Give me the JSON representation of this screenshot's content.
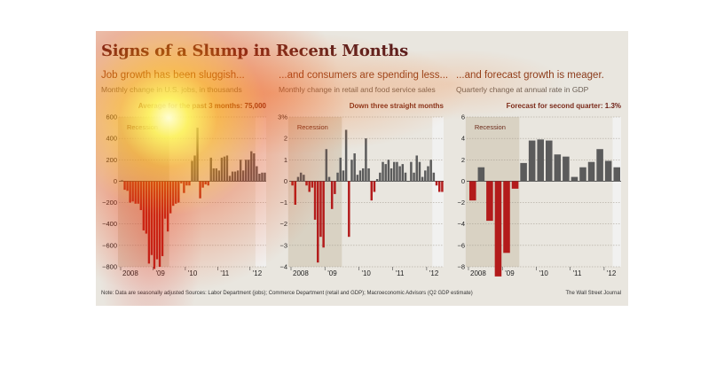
{
  "title": "Signs of a Slump in Recent Months",
  "panels": [
    {
      "heading": "Job growth has been sluggish...",
      "subtitle": "Monthly change in U.S. jobs, in thousands",
      "note_label": "Average for the past 3 months:",
      "note_value": "75,000"
    },
    {
      "heading": "...and consumers are spending less...",
      "subtitle": "Monthly change in retail and food service sales",
      "note_label": "Down three straight months",
      "note_value": ""
    },
    {
      "heading": "...and forecast growth is meager.",
      "subtitle": "Quarterly change at annual rate in GDP",
      "note_label": "Forecast for second quarter:",
      "note_value": "1.3%"
    }
  ],
  "footnote": "Note: Data are seasonally adjusted   Sources: Labor Department (jobs); Commerce Department (retail and GDP); Macroeconomic Advisors (Q2 GDP estimate)",
  "credit": "The Wall Street Journal",
  "colors": {
    "negative": "#b31b1b",
    "positive": "#5b5b5b",
    "recession": "#d9d2c3",
    "forecast": "#f2f2f2"
  },
  "chart_data": [
    {
      "type": "bar",
      "title": "Job growth has been sluggish...",
      "ylabel": "Monthly change in U.S. jobs, in thousands",
      "ylim": [
        -800,
        600
      ],
      "yticks": [
        "600",
        "400",
        "200",
        "0",
        "−200",
        "−400",
        "−600",
        "−800"
      ],
      "x_tick_labels": [
        "2008",
        "'09",
        "'10",
        "'11",
        "'12"
      ],
      "annotation": "Recession",
      "recession_span": [
        "Dec 2007",
        "Jun 2009"
      ],
      "x": [
        "2008-01",
        "2008-02",
        "2008-03",
        "2008-04",
        "2008-05",
        "2008-06",
        "2008-07",
        "2008-08",
        "2008-09",
        "2008-10",
        "2008-11",
        "2008-12",
        "2009-01",
        "2009-02",
        "2009-03",
        "2009-04",
        "2009-05",
        "2009-06",
        "2009-07",
        "2009-08",
        "2009-09",
        "2009-10",
        "2009-11",
        "2009-12",
        "2010-01",
        "2010-02",
        "2010-03",
        "2010-04",
        "2010-05",
        "2010-06",
        "2010-07",
        "2010-08",
        "2010-09",
        "2010-10",
        "2010-11",
        "2010-12",
        "2011-01",
        "2011-02",
        "2011-03",
        "2011-04",
        "2011-05",
        "2011-06",
        "2011-07",
        "2011-08",
        "2011-09",
        "2011-10",
        "2011-11",
        "2011-12",
        "2012-01",
        "2012-02",
        "2012-03",
        "2012-04",
        "2012-05",
        "2012-06"
      ],
      "values": [
        10,
        -80,
        -90,
        -200,
        -190,
        -210,
        -210,
        -270,
        -460,
        -490,
        -770,
        -690,
        -820,
        -730,
        -800,
        -700,
        -350,
        -470,
        -300,
        -230,
        -210,
        -200,
        -20,
        -110,
        -40,
        -40,
        190,
        240,
        500,
        -160,
        -60,
        -30,
        -40,
        220,
        120,
        120,
        100,
        220,
        230,
        240,
        50,
        90,
        90,
        100,
        200,
        100,
        200,
        200,
        280,
        260,
        140,
        70,
        80,
        80
      ]
    },
    {
      "type": "bar",
      "title": "...and consumers are spending less...",
      "ylabel": "Monthly change in retail and food service sales",
      "ylim": [
        -4,
        3
      ],
      "yticks": [
        "3%",
        "2",
        "1",
        "0",
        "−1",
        "−2",
        "−3",
        "−4"
      ],
      "x_tick_labels": [
        "2008",
        "'09",
        "'10",
        "'11",
        "'12"
      ],
      "annotation": "Recession",
      "recession_span": [
        "Dec 2007",
        "Jun 2009"
      ],
      "x": [
        "2008-01",
        "2008-02",
        "2008-03",
        "2008-04",
        "2008-05",
        "2008-06",
        "2008-07",
        "2008-08",
        "2008-09",
        "2008-10",
        "2008-11",
        "2008-12",
        "2009-01",
        "2009-02",
        "2009-03",
        "2009-04",
        "2009-05",
        "2009-06",
        "2009-07",
        "2009-08",
        "2009-09",
        "2009-10",
        "2009-11",
        "2009-12",
        "2010-01",
        "2010-02",
        "2010-03",
        "2010-04",
        "2010-05",
        "2010-06",
        "2010-07",
        "2010-08",
        "2010-09",
        "2010-10",
        "2010-11",
        "2010-12",
        "2011-01",
        "2011-02",
        "2011-03",
        "2011-04",
        "2011-05",
        "2011-06",
        "2011-07",
        "2011-08",
        "2011-09",
        "2011-10",
        "2011-11",
        "2011-12",
        "2012-01",
        "2012-02",
        "2012-03",
        "2012-04",
        "2012-05",
        "2012-06"
      ],
      "values": [
        -0.2,
        -1.1,
        0.2,
        0.4,
        0.3,
        -0.2,
        -0.5,
        -0.3,
        -1.8,
        -3.8,
        -2.6,
        -3.1,
        1.5,
        0.2,
        -1.3,
        -0.6,
        0.4,
        1.1,
        0.5,
        2.4,
        -2.6,
        1.0,
        1.3,
        0.3,
        0.5,
        0.6,
        2.0,
        0.6,
        -0.9,
        -0.5,
        0.1,
        0.4,
        0.9,
        0.8,
        1.0,
        0.6,
        0.9,
        0.9,
        0.7,
        0.8,
        0.4,
        0.0,
        0.9,
        0.4,
        1.2,
        0.9,
        0.2,
        0.5,
        0.7,
        1.0,
        0.4,
        -0.2,
        -0.5,
        -0.5
      ]
    },
    {
      "type": "bar",
      "title": "...and forecast growth is meager.",
      "ylabel": "Quarterly change at annual rate in GDP",
      "ylim": [
        -8,
        6
      ],
      "yticks": [
        "6",
        "4",
        "2",
        "0",
        "−2",
        "−4",
        "−6",
        "−8"
      ],
      "x_tick_labels": [
        "2008",
        "'09",
        "'10",
        "'11",
        "'12"
      ],
      "annotation": "Recession",
      "recession_span": [
        "Dec 2007",
        "Jun 2009"
      ],
      "x": [
        "2008 Q1",
        "2008 Q2",
        "2008 Q3",
        "2008 Q4",
        "2009 Q1",
        "2009 Q2",
        "2009 Q3",
        "2009 Q4",
        "2010 Q1",
        "2010 Q2",
        "2010 Q3",
        "2010 Q4",
        "2011 Q1",
        "2011 Q2",
        "2011 Q3",
        "2011 Q4",
        "2012 Q1",
        "2012 Q2"
      ],
      "values": [
        -1.8,
        1.3,
        -3.7,
        -8.9,
        -6.7,
        -0.7,
        1.7,
        3.8,
        3.9,
        3.8,
        2.5,
        2.3,
        0.4,
        1.3,
        1.8,
        3.0,
        1.9,
        1.3
      ]
    }
  ]
}
